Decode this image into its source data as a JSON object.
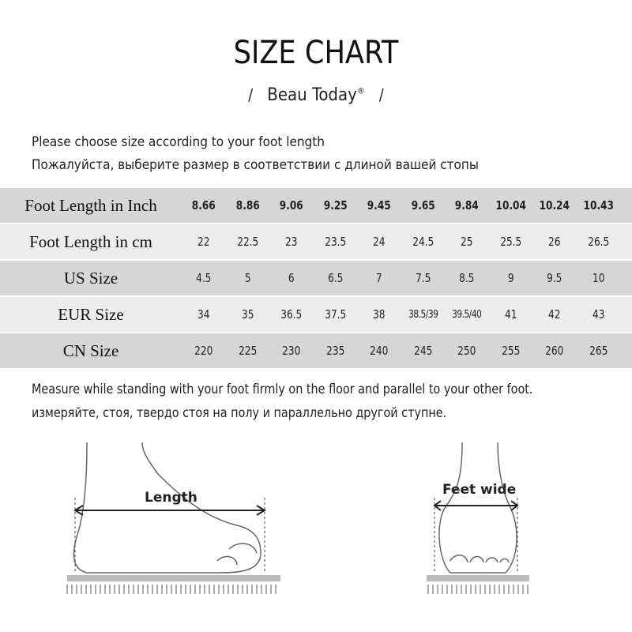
{
  "title": "SIZE CHART",
  "brand": "Beau Today",
  "brand_mark": "®",
  "intro": [
    "Please choose size according to your foot length",
    "Пожалуйста, выберите размер в соответствии с длиной вашей стопы"
  ],
  "table": [
    {
      "label": "Foot Length in Inch",
      "values": [
        "8.66",
        "8.86",
        "9.06",
        "9.25",
        "9.45",
        "9.65",
        "9.84",
        "10.04",
        "10.24",
        "10.43"
      ]
    },
    {
      "label": "Foot Length in cm",
      "values": [
        "22",
        "22.5",
        "23",
        "23.5",
        "24",
        "24.5",
        "25",
        "25.5",
        "26",
        "26.5"
      ]
    },
    {
      "label": "US Size",
      "values": [
        "4.5",
        "5",
        "6",
        "6.5",
        "7",
        "7.5",
        "8.5",
        "9",
        "9.5",
        "10"
      ]
    },
    {
      "label": "EUR Size",
      "values": [
        "34",
        "35",
        "36.5",
        "37.5",
        "38",
        "38.5/39",
        "39.5/40",
        "41",
        "42",
        "43"
      ]
    },
    {
      "label": "CN Size",
      "values": [
        "220",
        "225",
        "230",
        "235",
        "240",
        "245",
        "250",
        "255",
        "260",
        "265"
      ]
    }
  ],
  "measure": [
    "Measure while standing with your foot firmly on the floor and parallel to your other foot.",
    "измеряйте, стоя, твердо стоя на полу и параллельно другой ступне."
  ],
  "diagram": {
    "length_label": "Length",
    "width_label": "Feet wide"
  }
}
